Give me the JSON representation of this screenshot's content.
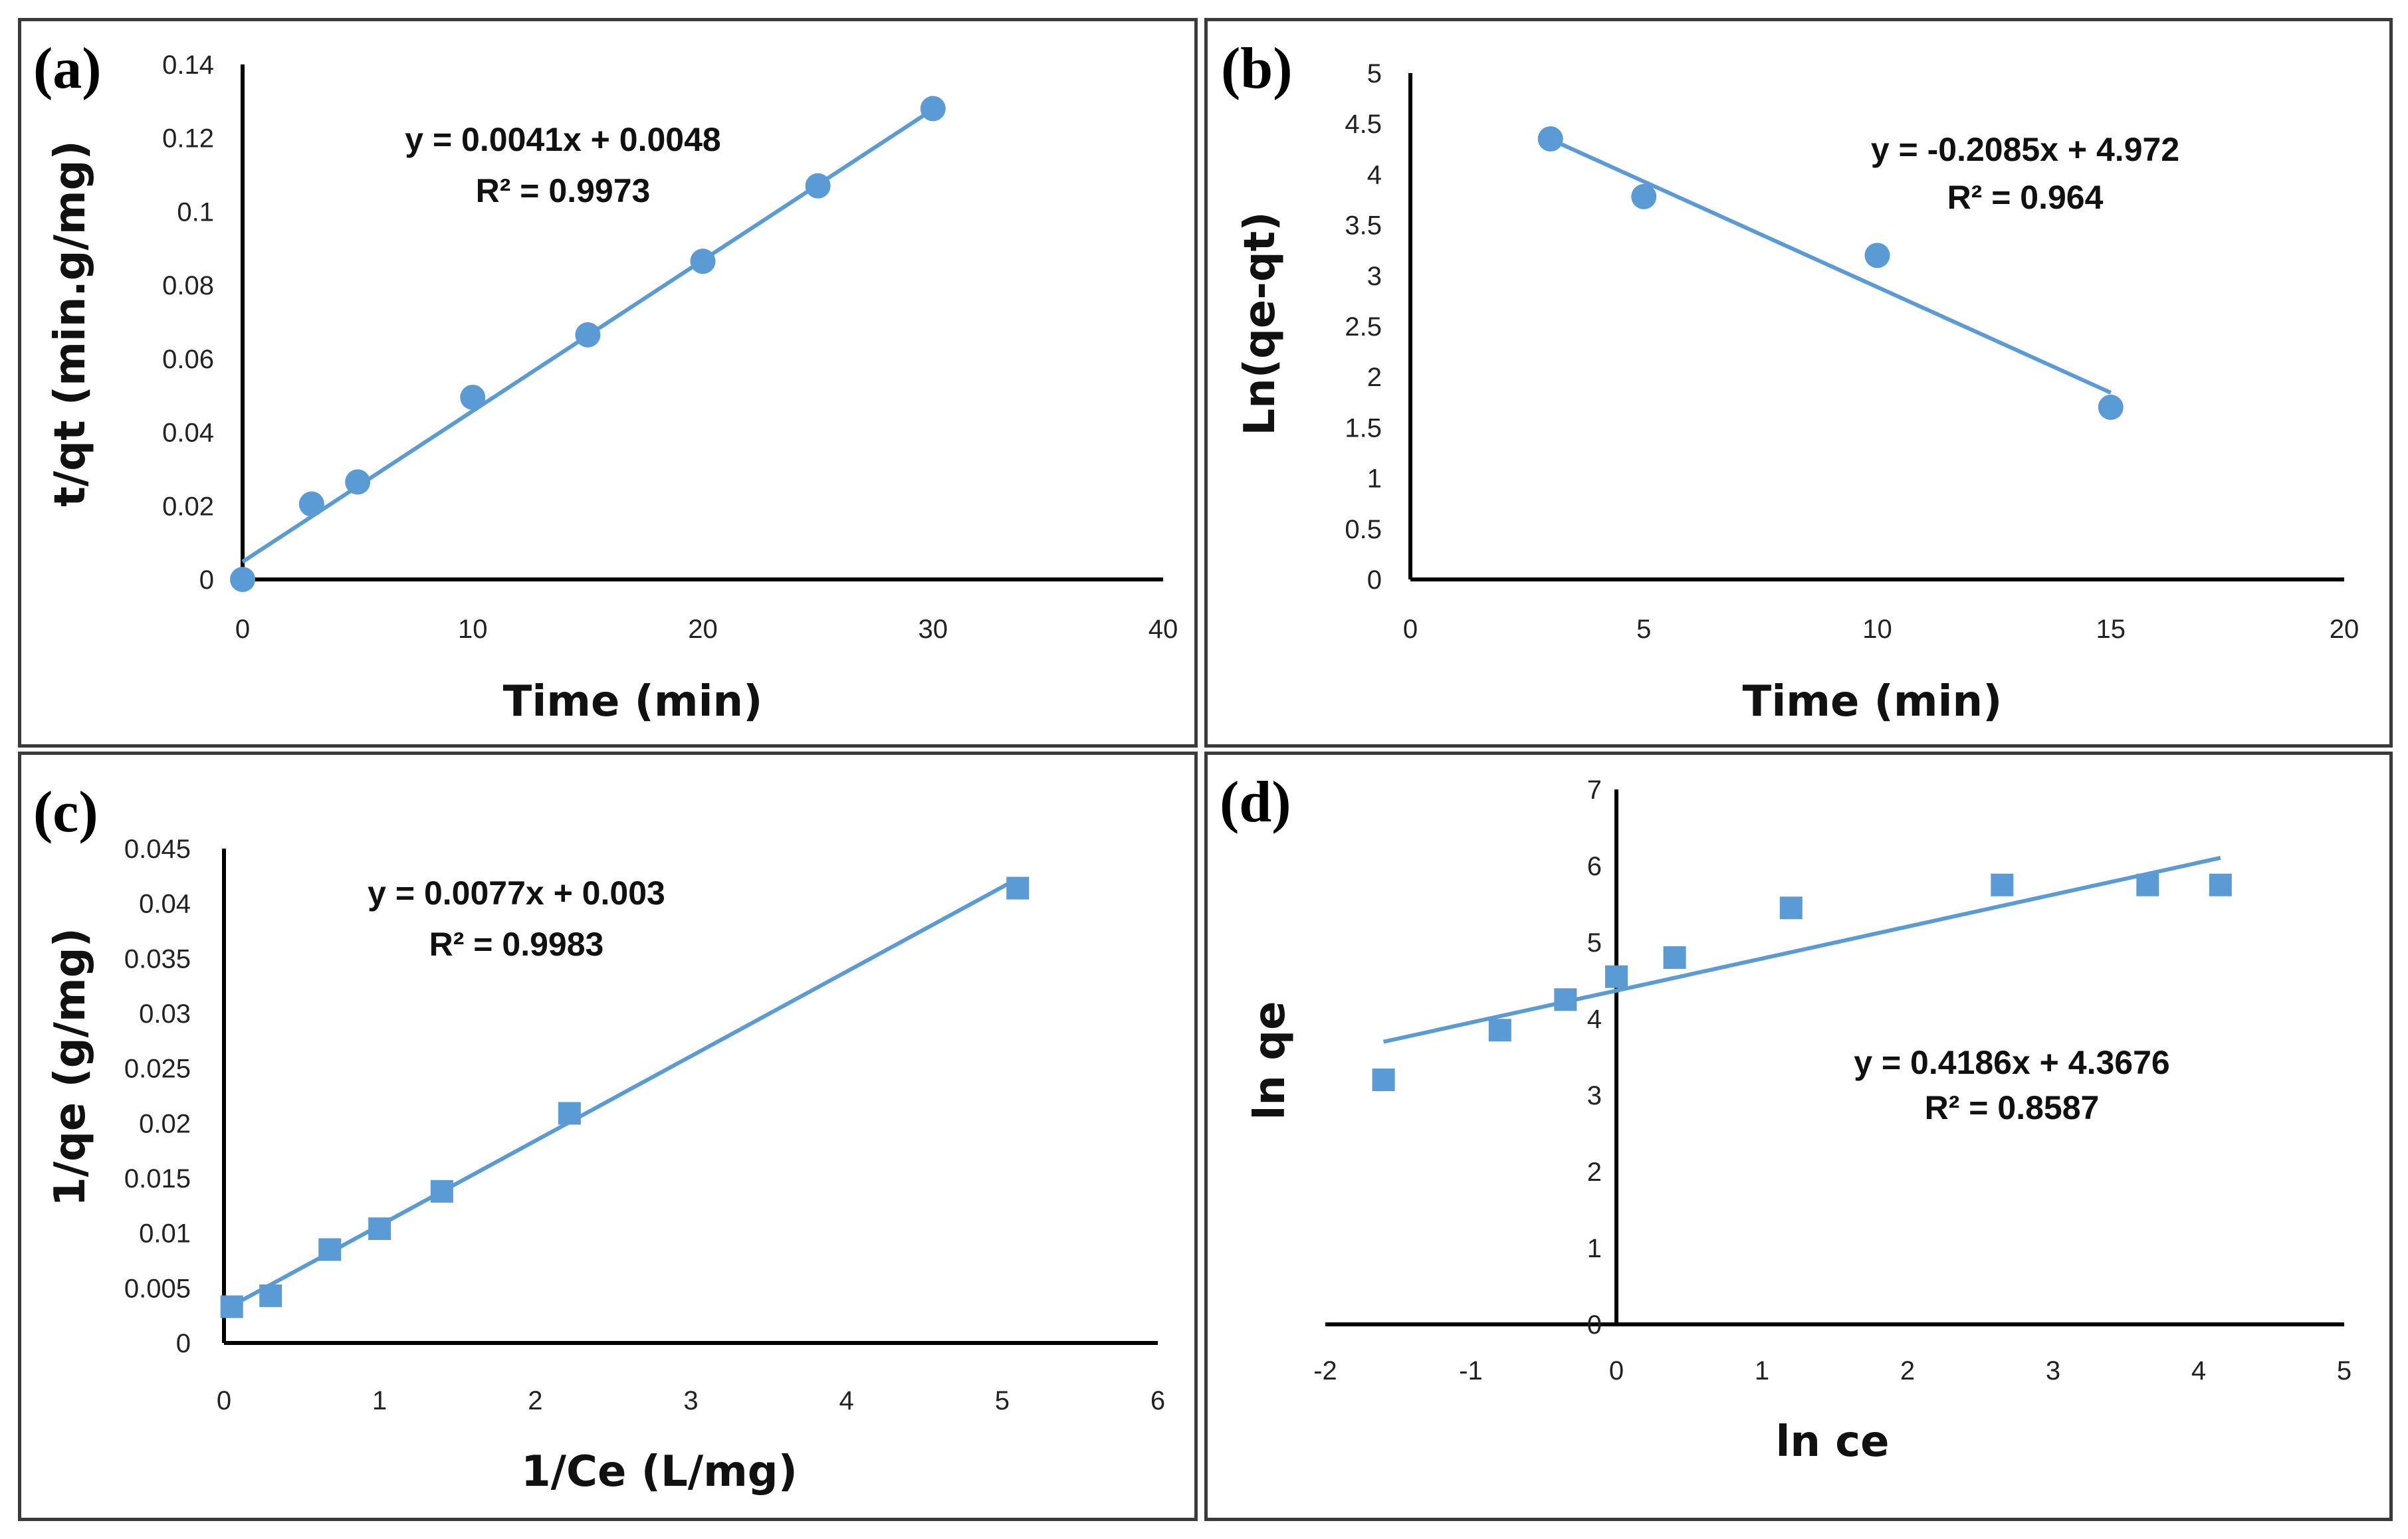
{
  "chart_data": [
    {
      "panel": "(a)",
      "type": "scatter",
      "marker": "circle",
      "x": [
        0,
        3,
        5,
        10,
        15,
        20,
        25,
        30
      ],
      "y": [
        0,
        0.0205,
        0.0265,
        0.0495,
        0.0665,
        0.0865,
        0.107,
        0.128
      ],
      "fit": {
        "slope": 0.0041,
        "intercept": 0.0048,
        "x_range": [
          0,
          30
        ]
      },
      "equation": "y = 0.0041x + 0.0048",
      "r2": "R² = 0.9973",
      "xlabel": "Time (min)",
      "ylabel": "t/qt (min.g/mg)",
      "xlim": [
        0,
        40
      ],
      "ylim": [
        0,
        0.14
      ],
      "xticks": [
        "0",
        "10",
        "20",
        "30",
        "40"
      ],
      "yticks": [
        "0",
        "0.02",
        "0.04",
        "0.06",
        "0.08",
        "0.1",
        "0.12",
        "0.14"
      ],
      "color": "#5b9bd5"
    },
    {
      "panel": "(b)",
      "type": "scatter",
      "marker": "circle",
      "x": [
        3,
        5,
        10,
        15
      ],
      "y": [
        4.35,
        3.78,
        3.2,
        1.7
      ],
      "fit": {
        "slope": -0.2085,
        "intercept": 4.972,
        "x_range": [
          3,
          15
        ]
      },
      "equation": "y = -0.2085x + 4.972",
      "r2": "R² = 0.964",
      "xlabel": "Time (min)",
      "ylabel": "Ln(qe-qt)",
      "xlim": [
        0,
        20
      ],
      "ylim": [
        0,
        5
      ],
      "xticks": [
        "0",
        "5",
        "10",
        "15",
        "20"
      ],
      "yticks": [
        "0",
        "0.5",
        "1",
        "1.5",
        "2",
        "2.5",
        "3",
        "3.5",
        "4",
        "4.5",
        "5"
      ],
      "color": "#5b9bd5"
    },
    {
      "panel": "(c)",
      "type": "scatter",
      "marker": "square",
      "x": [
        0.05,
        0.3,
        0.68,
        1.0,
        1.4,
        2.22,
        5.1
      ],
      "y": [
        0.0033,
        0.0043,
        0.0085,
        0.0104,
        0.0138,
        0.0209,
        0.0414
      ],
      "fit": {
        "slope": 0.0077,
        "intercept": 0.003,
        "x_range": [
          0,
          5.1
        ]
      },
      "equation": "y = 0.0077x + 0.003",
      "r2": "R² = 0.9983",
      "xlabel": "1/Ce (L/mg)",
      "ylabel": "1/qe (g/mg)",
      "xlim": [
        0,
        6
      ],
      "ylim": [
        0,
        0.045
      ],
      "xticks": [
        "0",
        "1",
        "2",
        "3",
        "4",
        "5",
        "6"
      ],
      "yticks": [
        "0",
        "0.005",
        "0.01",
        "0.015",
        "0.02",
        "0.025",
        "0.03",
        "0.035",
        "0.04",
        "0.045"
      ],
      "color": "#5b9bd5"
    },
    {
      "panel": "(d)",
      "type": "scatter",
      "marker": "square",
      "x": [
        -1.6,
        -0.8,
        -0.35,
        0.0,
        0.4,
        1.2,
        2.65,
        3.65,
        4.15
      ],
      "y": [
        3.2,
        3.85,
        4.25,
        4.55,
        4.8,
        5.45,
        5.75,
        5.75,
        5.75
      ],
      "fit": {
        "slope": 0.4186,
        "intercept": 4.3676,
        "x_range": [
          -1.6,
          4.15
        ]
      },
      "equation": "y = 0.4186x + 4.3676",
      "r2": "R² = 0.8587",
      "xlabel": "ln ce",
      "ylabel": "ln qe",
      "xlim": [
        -2,
        5
      ],
      "ylim": [
        0,
        7
      ],
      "xticks": [
        "-2",
        "-1",
        "0",
        "1",
        "2",
        "3",
        "4",
        "5"
      ],
      "yticks": [
        "0",
        "1",
        "2",
        "3",
        "4",
        "5",
        "6",
        "7"
      ],
      "color": "#5b9bd5"
    }
  ]
}
